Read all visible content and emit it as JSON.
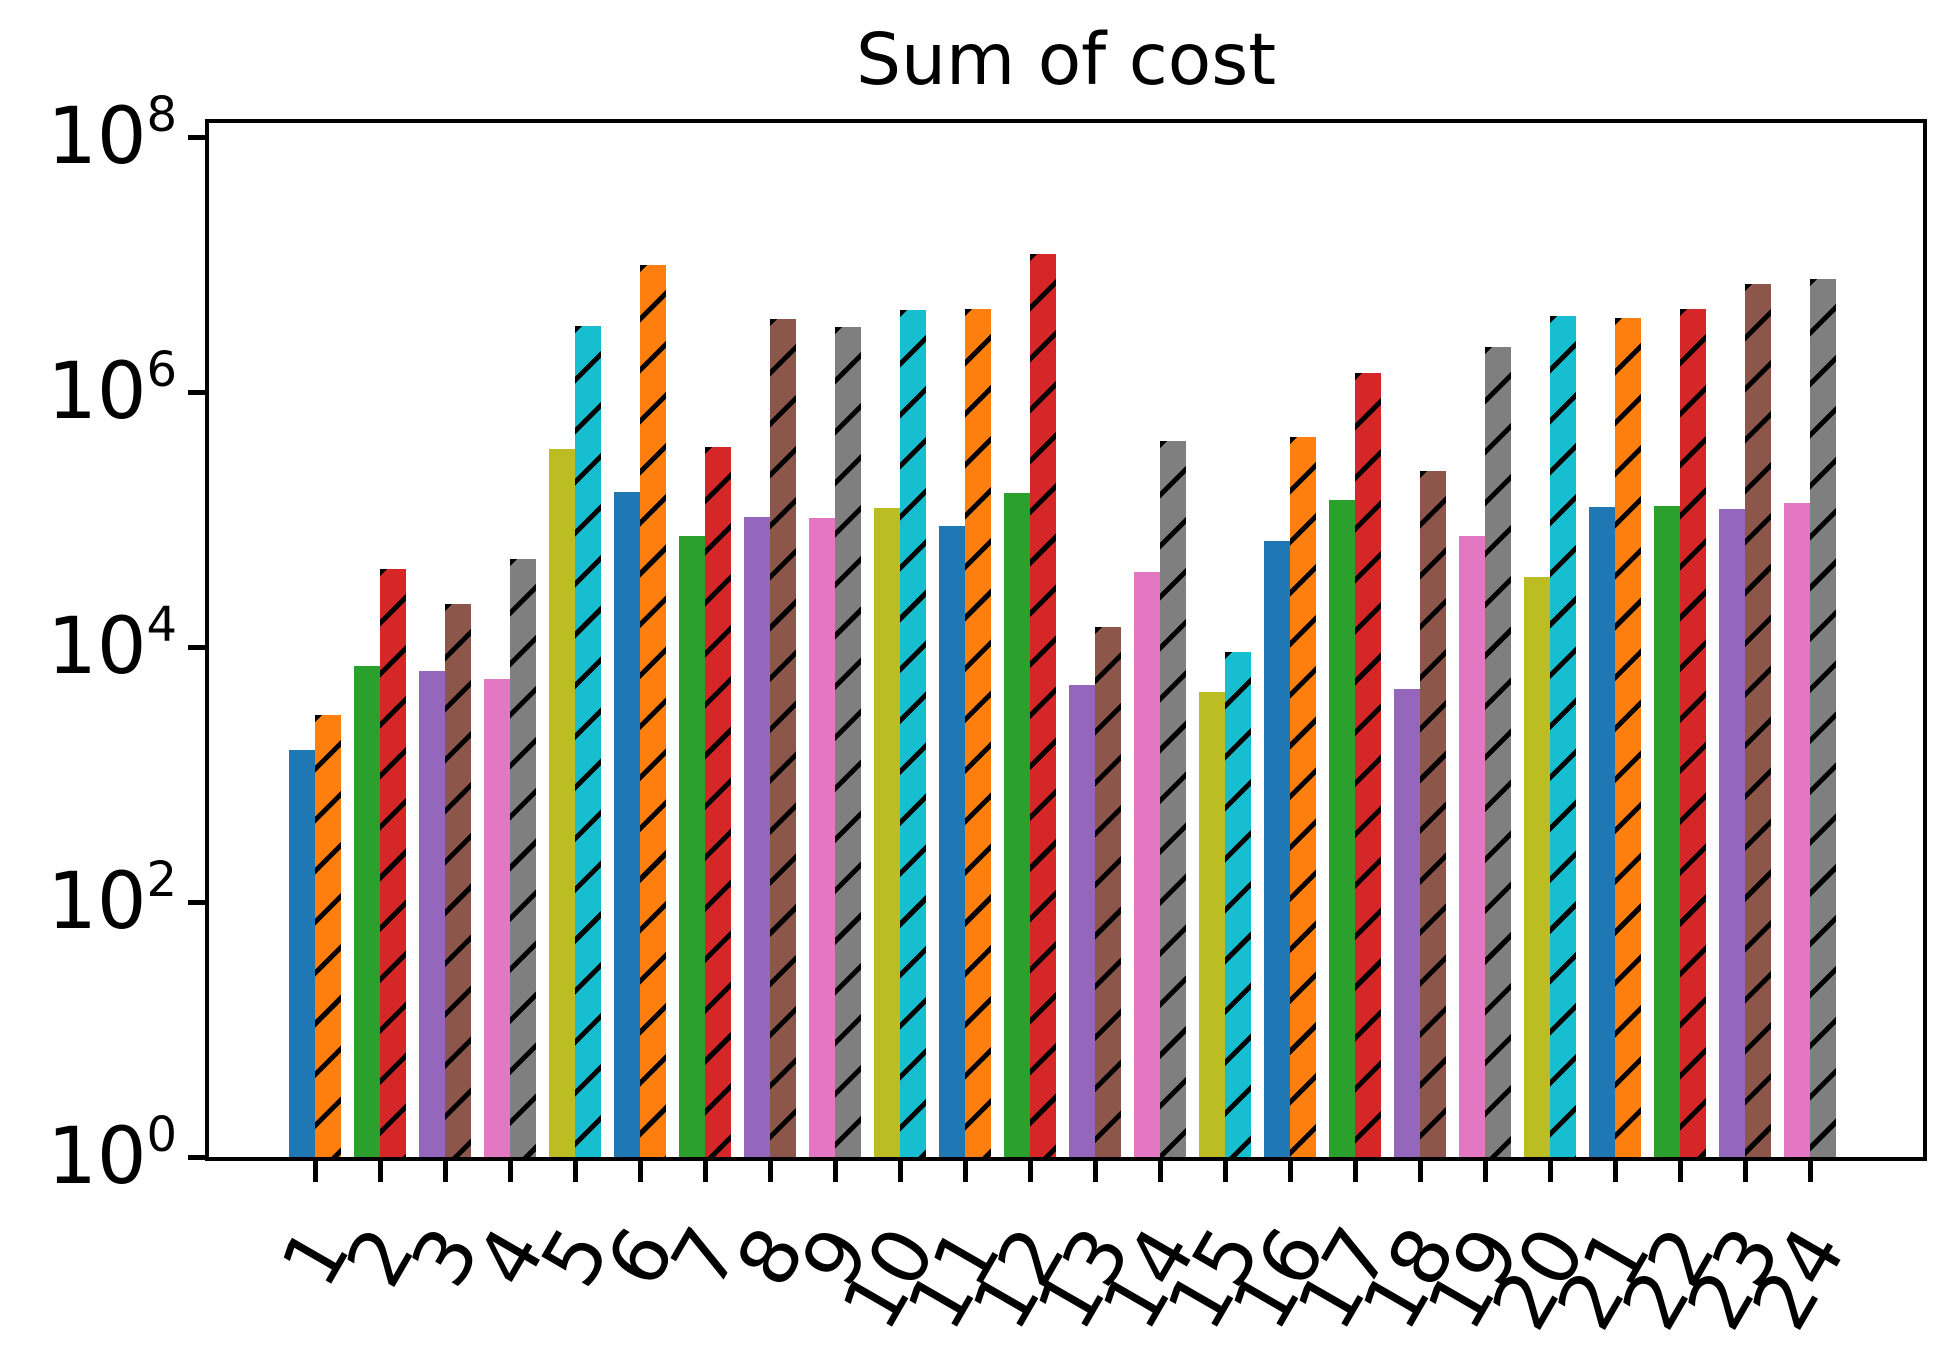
{
  "title": "Sum of cost",
  "y_axis": {
    "base": "10",
    "tick_exponents": [
      8,
      6,
      4,
      2,
      0
    ],
    "scale": "log"
  },
  "x_axis": {
    "labels": [
      "1",
      "2",
      "3",
      "4",
      "5",
      "6",
      "7",
      "8",
      "9",
      "10",
      "11",
      "12",
      "13",
      "14",
      "15",
      "16",
      "17",
      "18",
      "19",
      "20",
      "21",
      "22",
      "23",
      "24"
    ]
  },
  "style": {
    "color_pairs": [
      {
        "solid_name": "blue",
        "solid": "#1f77b4",
        "hatched_name": "orange",
        "hatched": "#ff7f0e"
      },
      {
        "solid_name": "green",
        "solid": "#2ca02c",
        "hatched_name": "red",
        "hatched": "#d62728"
      },
      {
        "solid_name": "purple",
        "solid": "#9467bd",
        "hatched_name": "brown",
        "hatched": "#8c564b"
      },
      {
        "solid_name": "pink",
        "solid": "#e377c2",
        "hatched_name": "gray",
        "hatched": "#7f7f7f"
      },
      {
        "solid_name": "olive",
        "solid": "#bcbd22",
        "hatched_name": "cyan",
        "hatched": "#17becf"
      }
    ],
    "hatch_pattern": "/",
    "hatch_color": "#000000",
    "axis_color": "#000000",
    "text_color": "#000000"
  },
  "chart_data": {
    "type": "bar",
    "title": "Sum of cost",
    "xlabel": "",
    "ylabel": "",
    "y_scale": "log",
    "ylim": [
      1,
      100000000
    ],
    "grid": false,
    "legend": "none",
    "categories": [
      "1",
      "2",
      "3",
      "4",
      "5",
      "6",
      "7",
      "8",
      "9",
      "10",
      "11",
      "12",
      "13",
      "14",
      "15",
      "16",
      "17",
      "18",
      "19",
      "20",
      "21",
      "22",
      "23",
      "24"
    ],
    "series": [
      {
        "name": "solid",
        "values": [
          1500,
          7100,
          6500,
          5600,
          350000,
          170000,
          74000,
          100000,
          100000,
          120000,
          89000,
          160000,
          5000,
          39000,
          4500,
          68000,
          140000,
          4700,
          74000,
          35000,
          130000,
          130000,
          120000,
          130000
        ],
        "exponents": [
          3.19,
          3.85,
          3.81,
          3.75,
          5.55,
          5.22,
          4.87,
          5.02,
          5.01,
          5.09,
          4.95,
          5.21,
          3.7,
          4.59,
          3.65,
          4.83,
          5.15,
          3.67,
          4.87,
          4.55,
          5.1,
          5.11,
          5.08,
          5.13
        ]
      },
      {
        "name": "hatched",
        "values": [
          3000,
          41000,
          22000,
          49000,
          3300000,
          10000000,
          370000,
          3700000,
          3200000,
          4400000,
          4500000,
          12000000,
          14000,
          420000,
          9100,
          450000,
          1400000,
          240000,
          2200000,
          4000000,
          3800000,
          4500000,
          7100000,
          7800000
        ],
        "exponents": [
          3.47,
          4.61,
          4.34,
          4.69,
          6.52,
          7.0,
          5.57,
          6.57,
          6.51,
          6.64,
          6.65,
          7.08,
          4.16,
          5.62,
          3.96,
          5.65,
          6.15,
          5.38,
          6.35,
          6.6,
          6.58,
          6.65,
          6.85,
          6.89
        ]
      }
    ]
  }
}
